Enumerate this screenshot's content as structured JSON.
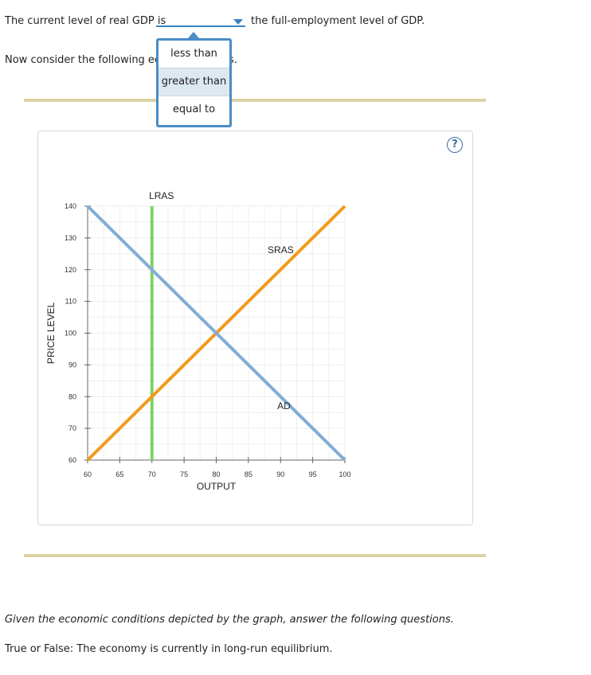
{
  "question": {
    "line1_prefix": "The current level of real GDP is",
    "line1_suffix": "the full-employment level of GDP.",
    "line2_prefix": "Now consider the following econ",
    "line2_tail": "s."
  },
  "dropdown": {
    "selected": "",
    "options": [
      "less than",
      "greater than",
      "equal to"
    ],
    "highlighted": "greater than"
  },
  "help_label": "?",
  "colors": {
    "lras": "#7fd16a",
    "sras": "#f29a1c",
    "ad": "#82acd6",
    "accent": "#3b83c0",
    "separator": "#dcd3a6"
  },
  "chart_data": {
    "type": "line",
    "xlabel": "OUTPUT",
    "ylabel": "PRICE LEVEL",
    "xlim": [
      60,
      100
    ],
    "ylim": [
      60,
      140
    ],
    "x_ticks": [
      60,
      65,
      70,
      75,
      80,
      85,
      90,
      95,
      100
    ],
    "y_ticks": [
      60,
      70,
      80,
      90,
      100,
      110,
      120,
      130,
      140
    ],
    "grid": true,
    "series": [
      {
        "name": "LRAS",
        "color": "#7fd16a",
        "points": [
          [
            70,
            60
          ],
          [
            70,
            140
          ]
        ]
      },
      {
        "name": "SRAS",
        "color": "#f29a1c",
        "points": [
          [
            60,
            60
          ],
          [
            100,
            140
          ]
        ]
      },
      {
        "name": "AD",
        "color": "#82acd6",
        "points": [
          [
            60,
            140
          ],
          [
            100,
            60
          ]
        ]
      }
    ]
  },
  "instructions": "Given the economic conditions depicted by the graph, answer the following questions.",
  "question2": "True or False: The economy is currently in long-run equilibrium."
}
